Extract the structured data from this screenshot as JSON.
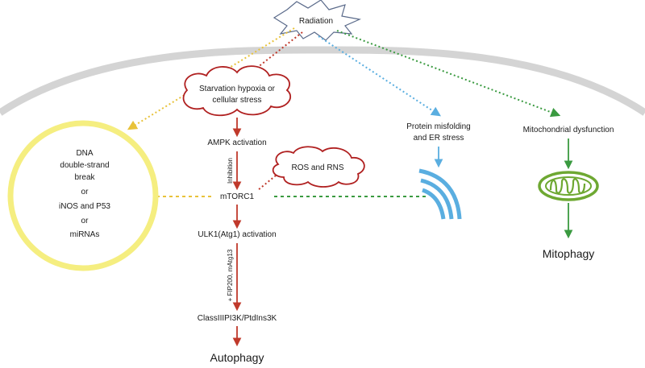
{
  "radiation": "Radiation",
  "cloud_top": {
    "line1": "Starvation hypoxia or",
    "line2": "cellular stress"
  },
  "ampk": "AMPK activation",
  "inhibition": "Inhibition",
  "ros": "ROS and RNS",
  "mtorc1": "mTORC1",
  "ulk1": "ULK1(Atg1) activation",
  "fip": "+ FIP200, mAtg13",
  "class3": "ClassIIIPI3K/PtdIns3K",
  "autophagy": "Autophagy",
  "dna": {
    "l1": "DNA",
    "l2": "double-strand",
    "l3": "break",
    "l4": "or",
    "l5": "iNOS and P53",
    "l6": "or",
    "l7": "miRNAs"
  },
  "protein": {
    "l1": "Protein misfolding",
    "l2": "and ER stress"
  },
  "mito": "Mitochondrial dysfunction",
  "mitophagy": "Mitophagy",
  "colors": {
    "yellow": "#f5ee80",
    "dashed_yellow": "#e8c23a",
    "red": "#c0392b",
    "blue": "#5aaee0",
    "green": "#3a9a40",
    "membrane": "#d4d4d4"
  }
}
